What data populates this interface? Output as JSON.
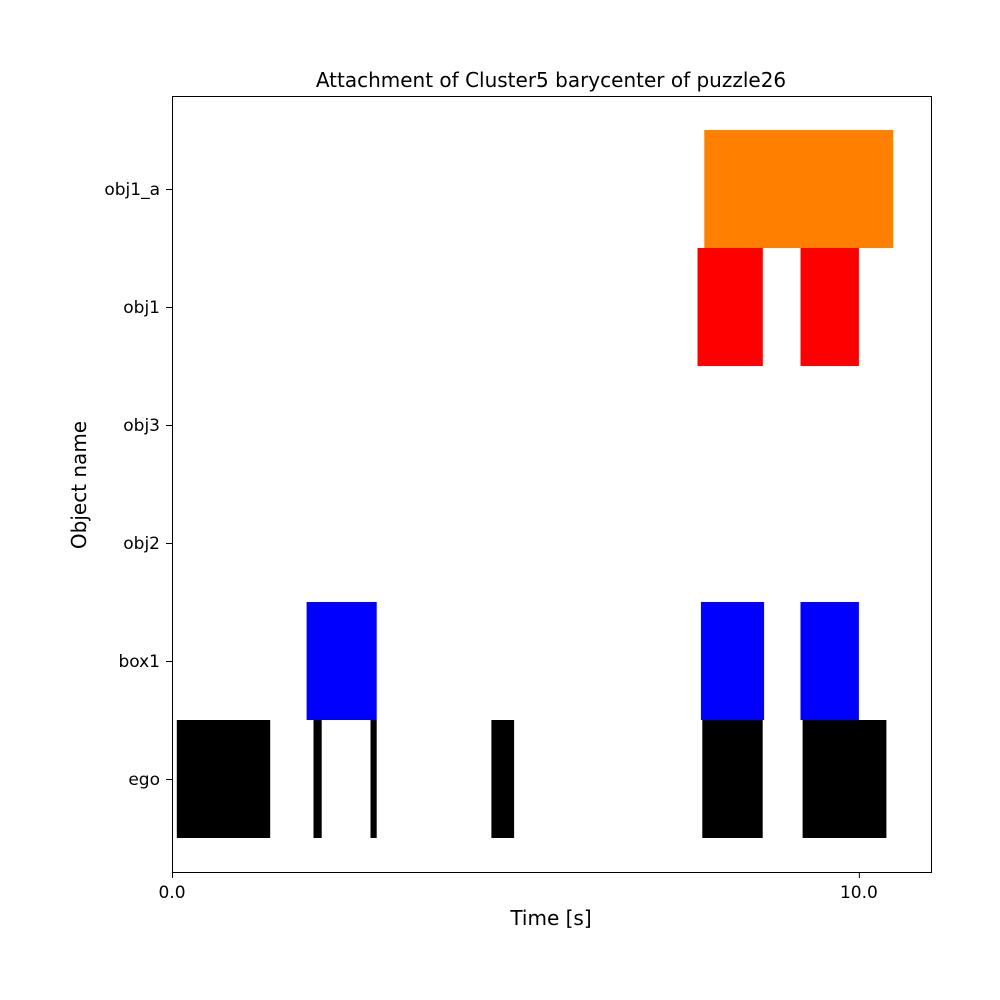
{
  "chart_data": {
    "type": "gantt",
    "title": "Attachment of Cluster5 barycenter of puzzle26",
    "xlabel": "Time [s]",
    "ylabel": "Object name",
    "xlim": [
      0.0,
      11.05
    ],
    "xticks": [
      0.0,
      10.0
    ],
    "xtick_labels": [
      "0.0",
      "10.0"
    ],
    "categories": [
      "ego",
      "box1",
      "obj2",
      "obj3",
      "obj1",
      "obj1_a"
    ],
    "grid": false,
    "series": [
      {
        "category": "ego",
        "color": "#000000",
        "intervals": [
          [
            0.07,
            1.43
          ],
          [
            2.06,
            2.18
          ],
          [
            2.89,
            2.98
          ],
          [
            4.65,
            4.98
          ],
          [
            7.72,
            8.6
          ],
          [
            9.18,
            10.4
          ]
        ]
      },
      {
        "category": "box1",
        "color": "#0000ff",
        "intervals": [
          [
            1.96,
            2.98
          ],
          [
            7.7,
            8.62
          ],
          [
            9.15,
            10.0
          ]
        ]
      },
      {
        "category": "obj2",
        "color": "#000000",
        "intervals": []
      },
      {
        "category": "obj3",
        "color": "#000000",
        "intervals": []
      },
      {
        "category": "obj1",
        "color": "#ff0000",
        "intervals": [
          [
            7.65,
            8.6
          ],
          [
            9.15,
            10.0
          ]
        ]
      },
      {
        "category": "obj1_a",
        "color": "#ff8000",
        "intervals": [
          [
            7.75,
            10.5
          ]
        ]
      }
    ]
  }
}
